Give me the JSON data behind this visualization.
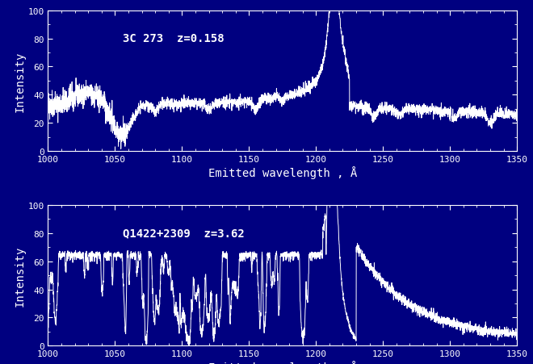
{
  "fig_bg": "#000080",
  "plot_bg": "#000080",
  "line_color": "white",
  "tick_color": "white",
  "label_color": "white",
  "spine_color": "white",
  "xlabel": "Emitted wavelength , Å",
  "ylabel": "Intensity",
  "xlim": [
    1000,
    1350
  ],
  "ylim": [
    0,
    100
  ],
  "xticks": [
    1000,
    1050,
    1100,
    1150,
    1200,
    1250,
    1300,
    1350
  ],
  "yticks": [
    0,
    20,
    40,
    60,
    80,
    100
  ],
  "label1": "3C 273  z=0.158",
  "label2": "Q1422+2309  z=3.62",
  "label_fontsize": 10,
  "axis_fontsize": 8,
  "tick_fontsize": 8,
  "linewidth": 0.7
}
